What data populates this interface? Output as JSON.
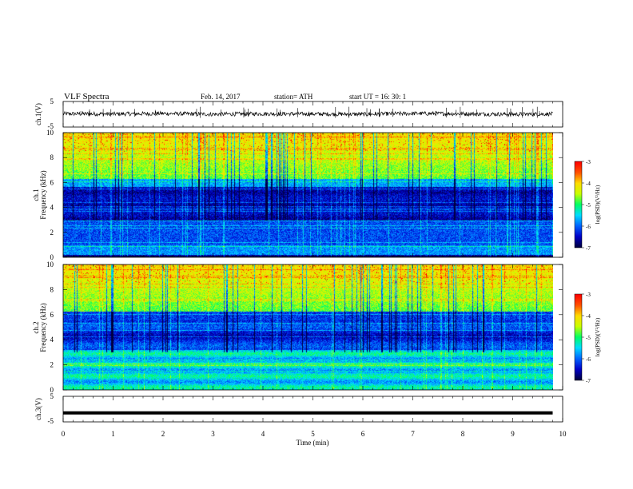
{
  "header": {
    "title": "VLF  Spectra",
    "date": "Feb. 14, 2017",
    "station": "station= ATH",
    "start": "start  UT  =    16: 30: 1"
  },
  "chart_data": [
    {
      "type": "line",
      "ylabel": "ch.1(V)",
      "xlim": [
        0,
        10
      ],
      "ylim": [
        -5,
        5
      ],
      "yticks": [
        "5",
        "-5"
      ],
      "series": [
        {
          "x": [
            0,
            1,
            2,
            3,
            4,
            5,
            6,
            7,
            8,
            9,
            9.8
          ],
          "y": [
            0.2,
            0.1,
            0.3,
            0.0,
            0.2,
            0.1,
            0.0,
            0.3,
            0.2,
            0.0,
            0.1
          ]
        }
      ]
    },
    {
      "type": "heatmap",
      "ylabel": "Frequency (kHz)",
      "channel_label": "ch.1",
      "xlim": [
        0,
        10
      ],
      "ylim": [
        0,
        10
      ],
      "yticks": [
        "0",
        "2",
        "4",
        "6",
        "8",
        "10"
      ],
      "colorbar": {
        "label": "log(PSD)(V²/Hz)",
        "range": [
          -7,
          -3
        ],
        "ticks": [
          "-3",
          "-4",
          "-5",
          "-6",
          "-7"
        ]
      }
    },
    {
      "type": "heatmap",
      "ylabel": "Frequency (kHz)",
      "channel_label": "ch.2",
      "xlim": [
        0,
        10
      ],
      "ylim": [
        0,
        10
      ],
      "yticks": [
        "0",
        "2",
        "4",
        "6",
        "8",
        "10"
      ],
      "colorbar": {
        "label": "log(PSD)(V²/Hz)",
        "range": [
          -7,
          -3
        ],
        "ticks": [
          "-3",
          "-4",
          "-5",
          "-6",
          "-7"
        ]
      }
    },
    {
      "type": "line",
      "ylabel": "ch.3(V)",
      "xlim": [
        0,
        10
      ],
      "ylim": [
        -5,
        5
      ],
      "yticks": [
        "5",
        "-5"
      ],
      "xlabel": "Time  (min)",
      "xticks": [
        "0",
        "1",
        "2",
        "3",
        "4",
        "5",
        "6",
        "7",
        "8",
        "9",
        "10"
      ],
      "series": [
        {
          "x": [
            0,
            9.8
          ],
          "y": [
            -1.5,
            -1.5
          ]
        }
      ]
    }
  ],
  "colors": {
    "colormap": [
      "#000040",
      "#0000c8",
      "#0064ff",
      "#00dcff",
      "#00ff64",
      "#c8ff00",
      "#ffdc00",
      "#ff5000",
      "#ff0000"
    ]
  }
}
